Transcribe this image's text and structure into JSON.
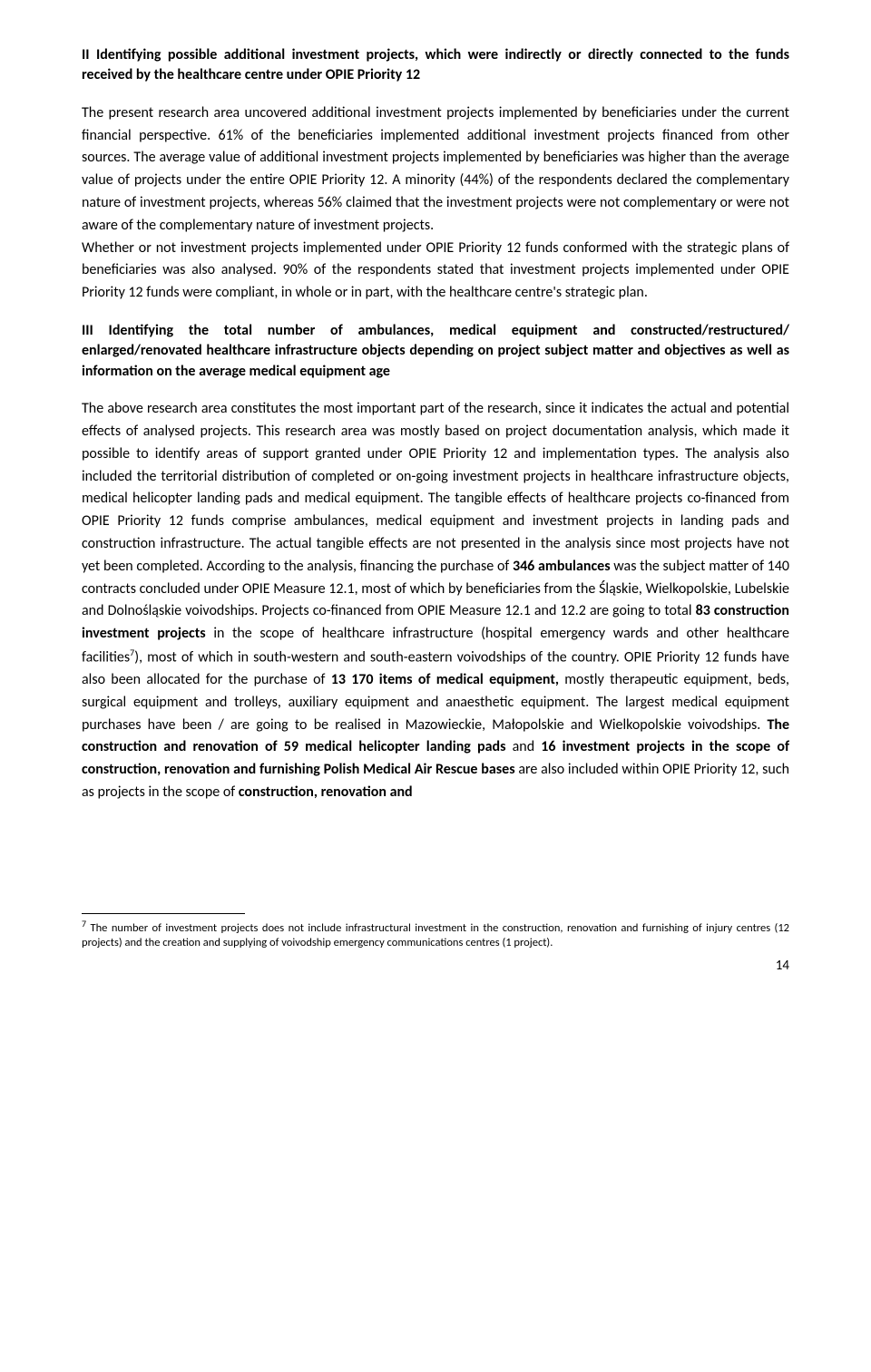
{
  "heading1": "II Identifying possible additional investment projects, which were indirectly or directly connected to the funds received by the healthcare centre under OPIE Priority 12",
  "para1": "The present research area uncovered additional investment projects implemented by beneficiaries under the current financial perspective. 61% of the beneficiaries implemented additional investment projects financed from other sources. The average value of additional investment projects implemented by beneficiaries was higher than the average value of projects under the entire OPIE Priority 12. A minority (44%) of the respondents declared the complementary nature of investment projects, whereas 56% claimed that the investment projects were not complementary or were not aware of the complementary nature of investment projects.",
  "para2": "Whether or not investment projects implemented under OPIE Priority 12 funds conformed with the strategic plans of beneficiaries was also analysed. 90% of the respondents stated that investment projects implemented under OPIE Priority 12 funds were compliant, in whole or in part, with the healthcare centre's strategic plan.",
  "heading2": "III Identifying the total number of ambulances, medical equipment and constructed/restructured/ enlarged/renovated healthcare infrastructure objects depending on project subject matter and objectives as well as information on the average medical equipment age",
  "para3_part1": "The above research area constitutes the most important part of the research, since it indicates the actual and potential effects of analysed projects. This research area was mostly based on project documentation analysis, which made it possible to identify areas of support granted under OPIE Priority 12 and implementation types. The analysis also included the territorial distribution of completed or on-going investment projects in healthcare infrastructure objects, medical helicopter landing pads and medical equipment. The tangible effects of healthcare projects co-financed from OPIE Priority 12 funds comprise ambulances, medical equipment and investment projects in landing pads and construction infrastructure. The actual tangible effects are not presented in the analysis since most projects have not yet been completed. According to the analysis, financing the purchase of ",
  "para3_bold1": "346 ambulances",
  "para3_part2": " was the subject matter of 140 contracts concluded under OPIE Measure 12.1, most of which by beneficiaries from the Śląskie, Wielkopolskie, Lubelskie and Dolnośląskie voivodships. Projects co-financed from OPIE Measure 12.1 and 12.2 are going to total ",
  "para3_bold2": "83 construction investment projects",
  "para3_part3": " in the scope of healthcare infrastructure (hospital emergency wards and other healthcare facilities",
  "para3_sup": "7",
  "para3_part4": "), most of which in south-western and south-eastern voivodships of the country. OPIE Priority 12 funds have also been allocated for the purchase of ",
  "para3_bold3": "13 170 items of medical equipment,",
  "para3_part5": " mostly therapeutic equipment, beds, surgical equipment and trolleys, auxiliary equipment and anaesthetic equipment. The largest medical equipment purchases have been / are going to be realised in Mazowieckie, Małopolskie and Wielkopolskie voivodships. ",
  "para3_bold4": "The construction and renovation of 59 medical helicopter landing pads",
  "para3_part6": " and ",
  "para3_bold5": "16 investment projects in the scope of construction, renovation and furnishing Polish Medical Air Rescue bases",
  "para3_part7": " are also included within OPIE Priority 12, such as projects in the scope of ",
  "para3_bold6": "construction, renovation and",
  "footnote_marker": "7",
  "footnote_text": " The number of investment projects does not include infrastructural investment in the construction, renovation and furnishing of injury centres (12 projects) and the creation and supplying of voivodship emergency communications centres (1 project).",
  "page_number": "14"
}
